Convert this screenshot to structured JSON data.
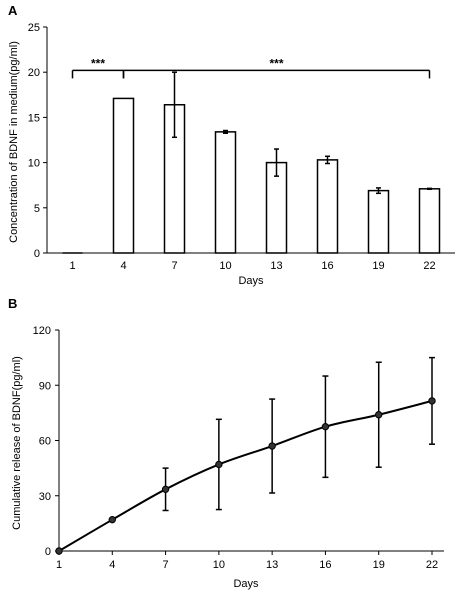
{
  "chart_data": [
    {
      "panel": "A",
      "type": "bar",
      "xlabel": "Days",
      "ylabel": "Concentration of BDNF in medium(pg/ml)",
      "categories": [
        "1",
        "4",
        "7",
        "10",
        "13",
        "16",
        "19",
        "22"
      ],
      "values": [
        0,
        17.1,
        16.4,
        13.4,
        10.0,
        10.3,
        6.9,
        7.1
      ],
      "errors": [
        0,
        0,
        3.6,
        0.15,
        1.5,
        0.4,
        0.3,
        0.05
      ],
      "ylim": [
        0,
        25
      ],
      "yticks": [
        0,
        5,
        10,
        15,
        20,
        25
      ],
      "significance": [
        {
          "label": "***",
          "from": "1",
          "to": "4"
        },
        {
          "label": "***",
          "from": "4",
          "to": "22"
        }
      ],
      "grid": false
    },
    {
      "panel": "B",
      "type": "line",
      "xlabel": "Days",
      "ylabel": "Cumulative release of BDNF(pg/ml)",
      "x": [
        1,
        4,
        7,
        10,
        13,
        16,
        19,
        22
      ],
      "values": [
        0,
        17,
        33.5,
        47,
        57,
        67.5,
        74,
        81.5
      ],
      "errors": [
        0,
        0,
        11.5,
        24.5,
        25.5,
        27.5,
        28.5,
        23.5
      ],
      "ylim": [
        0,
        120
      ],
      "yticks": [
        0,
        30,
        60,
        90,
        120
      ],
      "grid": false
    }
  ]
}
